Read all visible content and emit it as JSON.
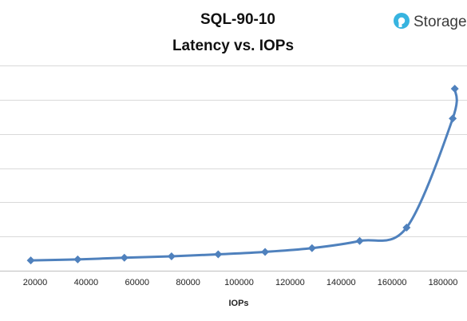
{
  "brand": {
    "name": "Storage",
    "icon": "storage-logo-icon",
    "icon_color": "#37b4e0"
  },
  "chart_data": {
    "type": "line",
    "title": "SQL-90-10",
    "subtitle": "Latency vs. IOPs",
    "xlabel": "IOPs",
    "ylabel": "",
    "xlim": [
      10000,
      190000
    ],
    "x_ticks": [
      20000,
      40000,
      60000,
      80000,
      100000,
      120000,
      140000,
      160000,
      180000
    ],
    "ylim": [
      0,
      6
    ],
    "y_gridlines": 6,
    "grid": true,
    "line_color": "#4f81bd",
    "marker": "diamond",
    "series": [
      {
        "x": [
          18300,
          36700,
          55000,
          73500,
          91800,
          110200,
          128600,
          147300,
          165700,
          183800,
          184600
        ],
        "y": [
          0.3,
          0.33,
          0.38,
          0.42,
          0.48,
          0.55,
          0.66,
          0.87,
          1.26,
          4.45,
          5.32
        ]
      }
    ]
  }
}
